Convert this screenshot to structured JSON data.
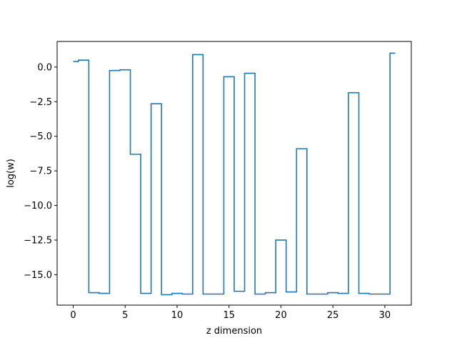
{
  "chart_data": {
    "type": "line",
    "drawstyle": "steps-mid",
    "xlabel": "z dimension",
    "ylabel": "log(w)",
    "xlim": [
      -1.55,
      32.55
    ],
    "ylim": [
      -17.2,
      1.85
    ],
    "x_ticks": [
      0,
      5,
      10,
      15,
      20,
      25,
      30
    ],
    "y_ticks": [
      0.0,
      -2.5,
      -5.0,
      -7.5,
      -10.0,
      -12.5,
      -15.0
    ],
    "x_tick_labels": [
      "0",
      "5",
      "10",
      "15",
      "20",
      "25",
      "30"
    ],
    "y_tick_labels": [
      "0.0",
      "−2.5",
      "−5.0",
      "−7.5",
      "−10.0",
      "−12.5",
      "−15.0"
    ],
    "grid": false,
    "legend": "none",
    "series": [
      {
        "color": "#1f77b4",
        "x": [
          0,
          1,
          2,
          3,
          4,
          5,
          6,
          7,
          8,
          9,
          10,
          11,
          12,
          13,
          14,
          15,
          16,
          17,
          18,
          19,
          20,
          21,
          22,
          23,
          24,
          25,
          26,
          27,
          28,
          29,
          30,
          31
        ],
        "y": [
          0.4,
          0.5,
          -16.3,
          -16.35,
          -0.25,
          -0.2,
          -6.3,
          -16.35,
          -2.65,
          -16.45,
          -16.35,
          -16.4,
          0.9,
          -16.4,
          -16.4,
          -0.7,
          -16.2,
          -0.45,
          -16.4,
          -16.3,
          -12.5,
          -16.25,
          -5.9,
          -16.4,
          -16.4,
          -16.3,
          -16.35,
          -1.85,
          -16.35,
          -16.4,
          -16.4,
          1.0
        ]
      }
    ]
  }
}
